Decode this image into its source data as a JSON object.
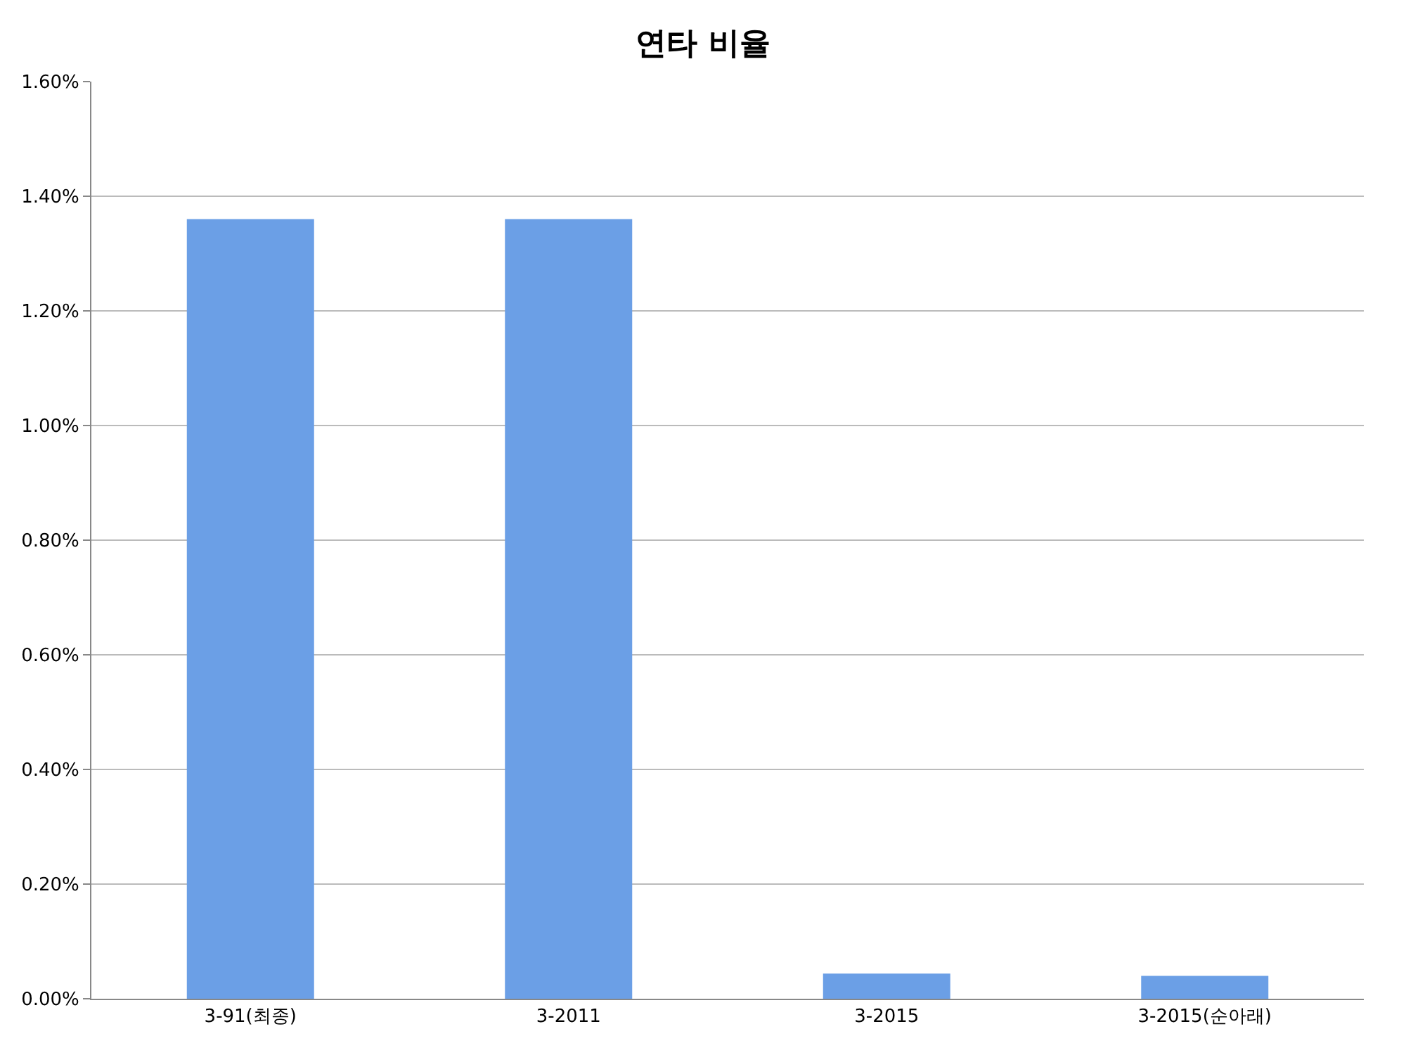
{
  "chart_data": {
    "type": "bar",
    "title": "연타 비율",
    "categories": [
      "3-91(최종)",
      "3-2011",
      "3-2015",
      "3-2015(순아래)"
    ],
    "values": [
      1.36,
      1.36,
      0.044,
      0.04
    ],
    "color": "#6b9fe6",
    "ylim": [
      0,
      1.6
    ],
    "yticks": [
      {
        "value": 0,
        "label": "0.00%"
      },
      {
        "value": 0.2,
        "label": "0.20%"
      },
      {
        "value": 0.4,
        "label": "0.40%"
      },
      {
        "value": 0.6,
        "label": "0.60%"
      },
      {
        "value": 0.8,
        "label": "0.80%"
      },
      {
        "value": 1.0,
        "label": "1.00%"
      },
      {
        "value": 1.2,
        "label": "1.20%"
      },
      {
        "value": 1.4,
        "label": "1.40%"
      },
      {
        "value": 1.6,
        "label": "1.60%"
      }
    ],
    "grid": "y"
  }
}
